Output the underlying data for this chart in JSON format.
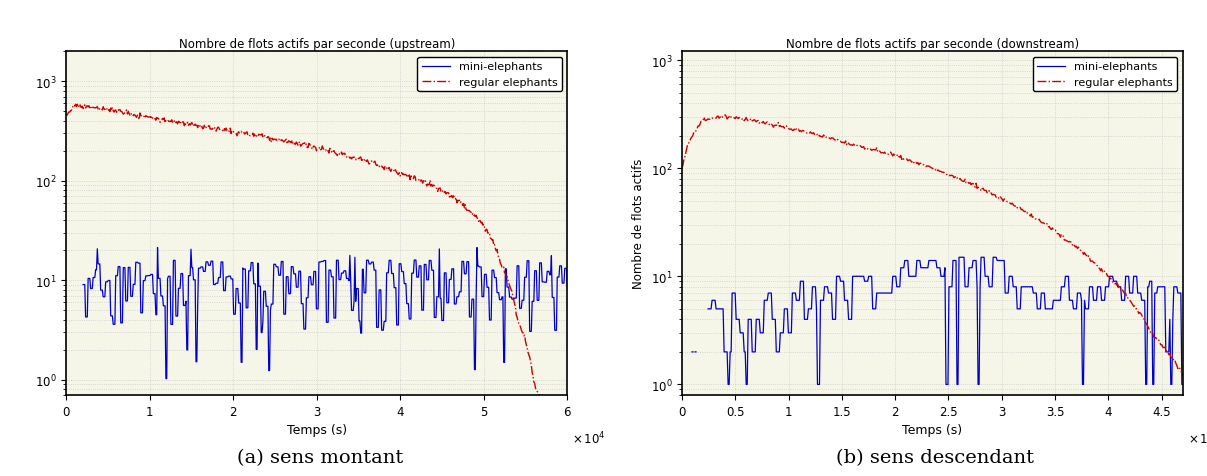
{
  "title_left": "Nombre de flots actifs par seconde (upstream)",
  "title_right": "Nombre de flots actifs par seconde (downstream)",
  "xlabel": "Temps (s)",
  "ylabel_right": "Nombre de flots actifs",
  "legend_blue": "mini-elephants",
  "legend_red": "regular elephants",
  "caption_left": "(a) sens montant",
  "caption_right": "(b) sens descendant",
  "xlim_left": [
    0,
    60000
  ],
  "xlim_right": [
    0,
    47000
  ],
  "bg_color": "#f5f5e8",
  "grid_color": "#cccccc",
  "blue_color": "#0000cc",
  "red_color": "#cc0000",
  "ylim_left": [
    0.7,
    2000
  ],
  "ylim_right": [
    0.8,
    1200
  ]
}
